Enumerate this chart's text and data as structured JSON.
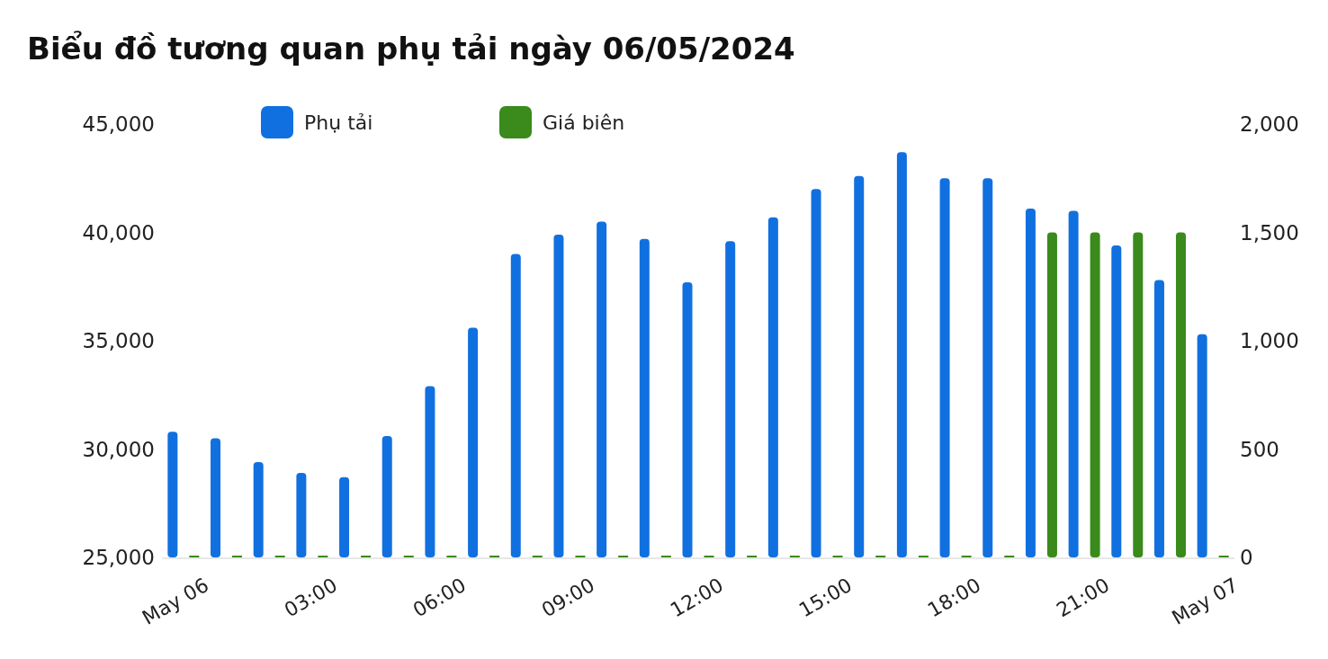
{
  "chart_data": {
    "type": "bar",
    "title": "Biểu đồ tương quan phụ tải ngày 06/05/2024",
    "x": [
      "2024-05-06T00:00",
      "2024-05-06T01:00",
      "2024-05-06T02:00",
      "2024-05-06T03:00",
      "2024-05-06T04:00",
      "2024-05-06T05:00",
      "2024-05-06T06:00",
      "2024-05-06T07:00",
      "2024-05-06T08:00",
      "2024-05-06T09:00",
      "2024-05-06T10:00",
      "2024-05-06T11:00",
      "2024-05-06T12:00",
      "2024-05-06T13:00",
      "2024-05-06T14:00",
      "2024-05-06T15:00",
      "2024-05-06T16:00",
      "2024-05-06T17:00",
      "2024-05-06T18:00",
      "2024-05-06T19:00",
      "2024-05-06T20:00",
      "2024-05-06T21:00",
      "2024-05-06T22:00",
      "2024-05-06T23:00",
      "2024-05-07T00:00"
    ],
    "series": [
      {
        "name": "Phụ tải",
        "color": "#1170e0",
        "values": [
          30800,
          30500,
          29400,
          28900,
          28700,
          30600,
          32900,
          35600,
          39000,
          39900,
          40500,
          39700,
          37700,
          39600,
          40700,
          42000,
          42600,
          43700,
          42500,
          42500,
          41100,
          41000,
          39400,
          37800,
          35300
        ]
      },
      {
        "name": "Giá biên",
        "color": "#3a8a1c",
        "axis": "y2",
        "values": [
          0,
          0,
          0,
          0,
          0,
          0,
          0,
          0,
          0,
          0,
          0,
          0,
          0,
          0,
          0,
          0,
          0,
          0,
          0,
          0,
          1500,
          1500,
          1500,
          1500,
          0
        ]
      }
    ],
    "xticks": [
      {
        "value": "2024-05-06T00:00",
        "label": "May 06"
      },
      {
        "value": "2024-05-06T03:00",
        "label": "03:00"
      },
      {
        "value": "2024-05-06T06:00",
        "label": "06:00"
      },
      {
        "value": "2024-05-06T09:00",
        "label": "09:00"
      },
      {
        "value": "2024-05-06T12:00",
        "label": "12:00"
      },
      {
        "value": "2024-05-06T15:00",
        "label": "15:00"
      },
      {
        "value": "2024-05-06T18:00",
        "label": "18:00"
      },
      {
        "value": "2024-05-06T21:00",
        "label": "21:00"
      },
      {
        "value": "2024-05-07T00:00",
        "label": "May 07"
      }
    ],
    "xlim": [
      "2024-05-05T23:30",
      "2024-05-07T00:30"
    ],
    "ylim": [
      25000,
      45000
    ],
    "yticks": [
      {
        "value": 25000,
        "label": "25,000"
      },
      {
        "value": 30000,
        "label": "30,000"
      },
      {
        "value": 35000,
        "label": "35,000"
      },
      {
        "value": 40000,
        "label": "40,000"
      },
      {
        "value": 45000,
        "label": "45,000"
      }
    ],
    "y2lim": [
      0,
      2000
    ],
    "y2ticks": [
      {
        "value": 0,
        "label": "0"
      },
      {
        "value": 500,
        "label": "500"
      },
      {
        "value": 1000,
        "label": "1,000"
      },
      {
        "value": 1500,
        "label": "1,500"
      },
      {
        "value": 2000,
        "label": "2,000"
      }
    ],
    "legend": "top left",
    "grid": false
  }
}
